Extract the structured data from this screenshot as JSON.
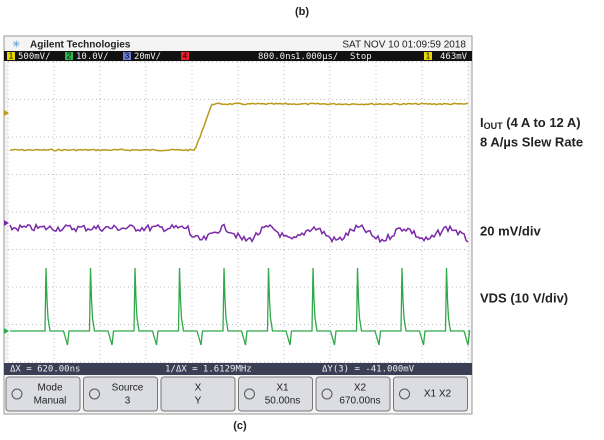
{
  "figure_top_label": "(b)",
  "header": {
    "brand": "Agilent Technologies",
    "datetime": "SAT NOV 10 01:09:59 2018"
  },
  "status_bar": {
    "channels": [
      {
        "num": "1",
        "scale": "500mV/"
      },
      {
        "num": "2",
        "scale": "10.0V/"
      },
      {
        "num": "3",
        "scale": "20mV/"
      },
      {
        "num": "4"
      }
    ],
    "time_offset": "800.0ns",
    "time_scale": "1.000µs/",
    "run_state": "Stop",
    "trigger_channel": "1",
    "trigger_level": "463mV"
  },
  "annotations": {
    "iout_main": "I",
    "iout_sub": "OUT",
    "iout_range": " (4 A to 12 A)",
    "slew": "8 A/µs Slew Rate",
    "ch3_scale": "20 mV/div",
    "vds": "VDS (10 V/div)"
  },
  "measurements": {
    "dx": "ΔX = 620.00ns",
    "inv_dx": "1/ΔX = 1.6129MHz",
    "dy": "ΔY(3) = -41.000mV"
  },
  "softkeys": [
    {
      "top": "Mode",
      "bottom": "Manual"
    },
    {
      "top": "Source",
      "bottom": "3"
    },
    {
      "top": "X",
      "bottom": "Y"
    },
    {
      "top": "X1",
      "bottom": "50.00ns"
    },
    {
      "top": "X2",
      "bottom": "670.00ns"
    },
    {
      "top": "X1 X2"
    }
  ],
  "figure_bottom_label": "(c)"
}
